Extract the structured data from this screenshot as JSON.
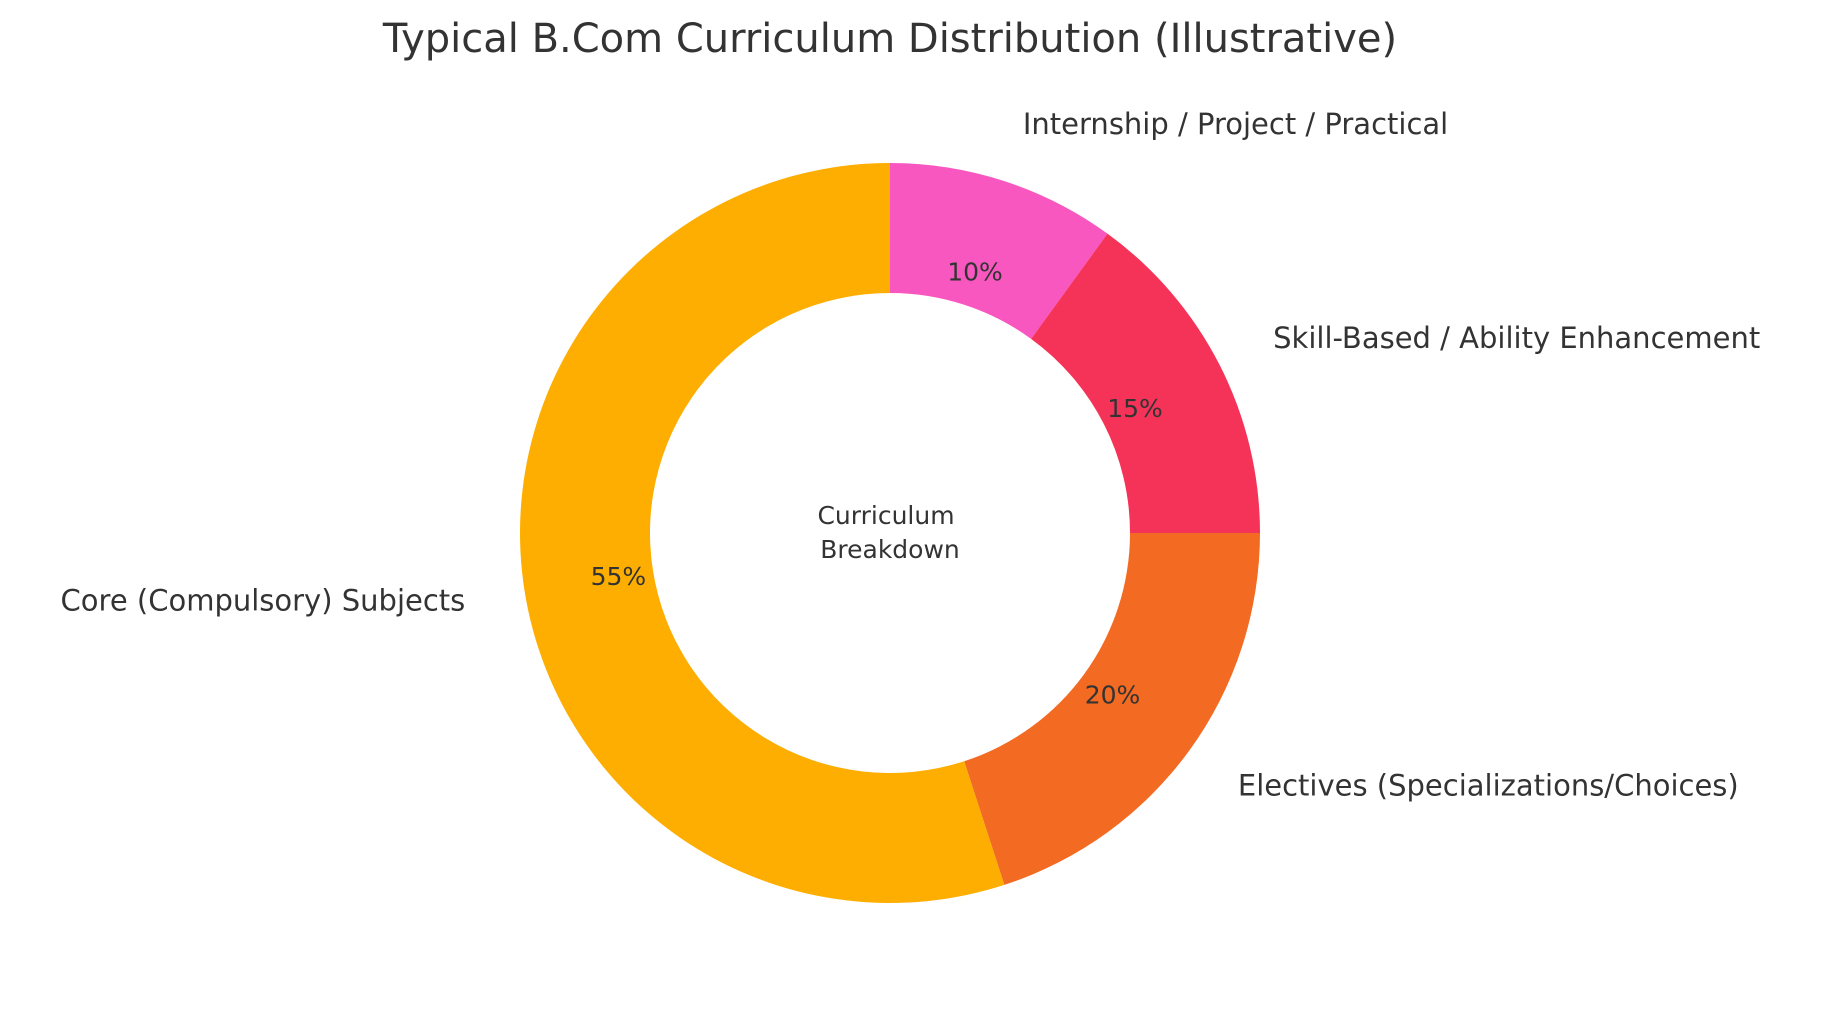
{
  "chart_data": {
    "type": "pie",
    "title": "Typical B.Com Curriculum Distribution (Illustrative)",
    "center_text": [
      "Curriculum",
      "Breakdown"
    ],
    "donut": true,
    "start_angle": "top",
    "direction": "clockwise",
    "slices": [
      {
        "label": "Internship / Project / Practical",
        "value": 10,
        "pct_label": "10%",
        "color": "#F857C0"
      },
      {
        "label": "Skill-Based / Ability Enhancement",
        "value": 15,
        "pct_label": "15%",
        "color": "#F53358"
      },
      {
        "label": "Electives (Specializations/Choices)",
        "value": 20,
        "pct_label": "20%",
        "color": "#F36A22"
      },
      {
        "label": "Core (Compulsory) Subjects",
        "value": 55,
        "pct_label": "55%",
        "color": "#FDAE00"
      }
    ]
  }
}
